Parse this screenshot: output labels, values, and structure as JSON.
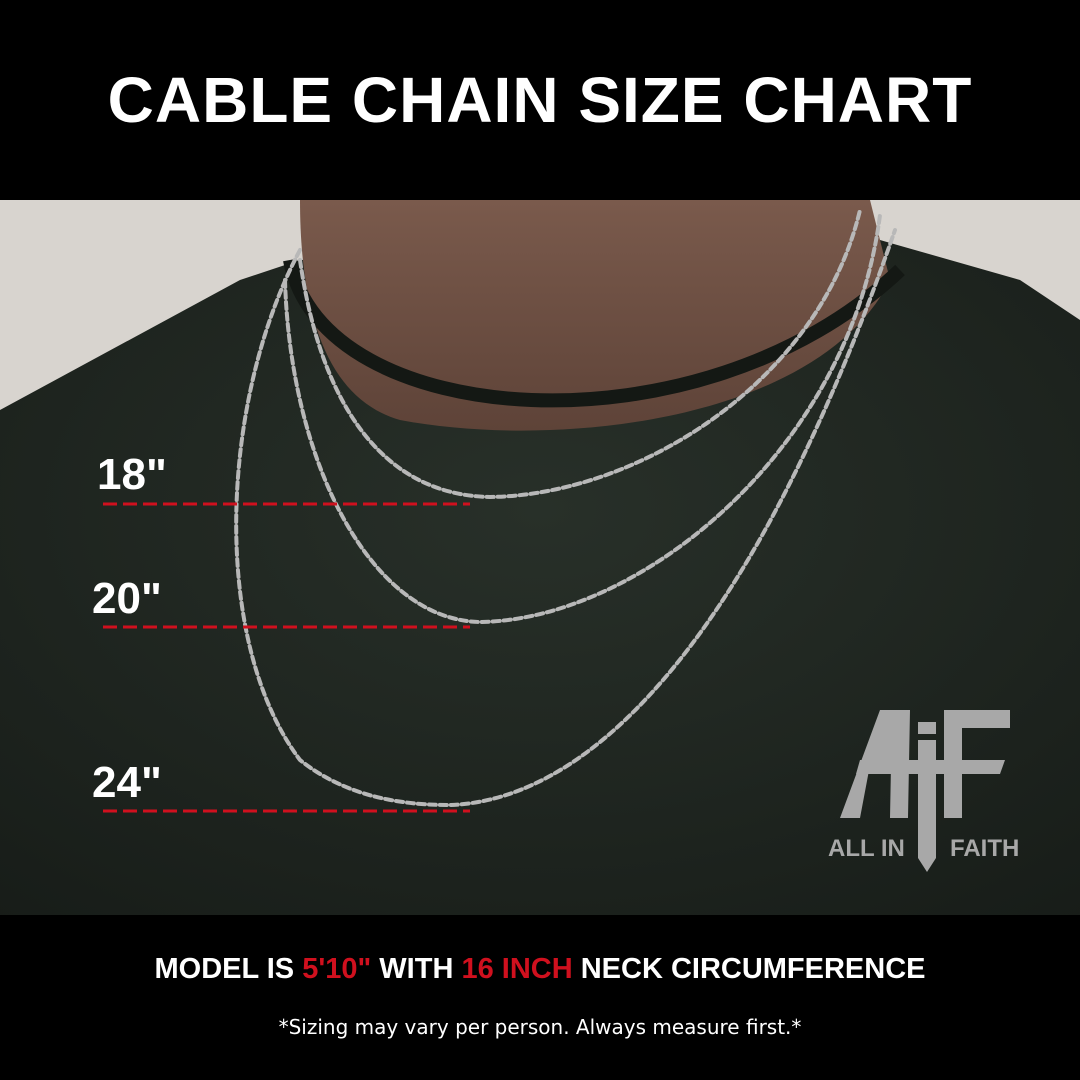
{
  "header": {
    "title": "CABLE CHAIN SIZE CHART"
  },
  "sizes": [
    {
      "label": "18\""
    },
    {
      "label": "20\""
    },
    {
      "label": "24\""
    }
  ],
  "logo": {
    "mark": "AiF",
    "left_text": "ALL IN",
    "right_text": "FAITH"
  },
  "footer": {
    "model_prefix": "MODEL IS ",
    "height": "5'10\"",
    "model_mid": " WITH ",
    "neck": "16 INCH",
    "model_suffix": " NECK CIRCUMFERENCE",
    "note": "*Sizing may vary per person. Always measure first.*"
  },
  "colors": {
    "accent_red": "#d0101e",
    "background": "#000000",
    "shirt": "#1f2520",
    "logo_gray": "#a8a8a8"
  }
}
